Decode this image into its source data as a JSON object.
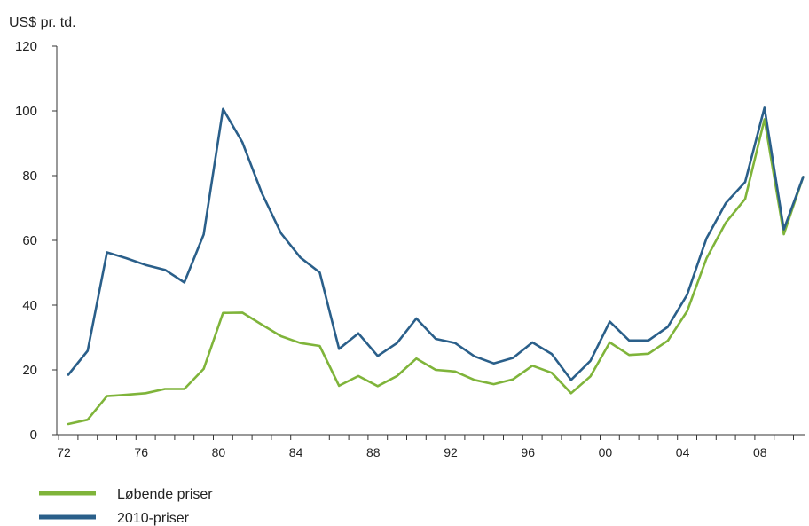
{
  "chart_data": {
    "type": "line",
    "ylabel": "US$ pr. td.",
    "ylim": [
      0,
      120
    ],
    "y_ticks": [
      "0",
      "20",
      "40",
      "60",
      "80",
      "100",
      "120"
    ],
    "x": [
      1972,
      1973,
      1974,
      1975,
      1976,
      1977,
      1978,
      1979,
      1980,
      1981,
      1982,
      1983,
      1984,
      1985,
      1986,
      1987,
      1988,
      1989,
      1990,
      1991,
      1992,
      1993,
      1994,
      1995,
      1996,
      1997,
      1998,
      1999,
      2000,
      2001,
      2002,
      2003,
      2004,
      2005,
      2006,
      2007,
      2008,
      2009,
      2010
    ],
    "x_tick_years": [
      1972,
      1976,
      1980,
      1984,
      1988,
      1992,
      1996,
      2000,
      2004,
      2008
    ],
    "x_tick_labels": [
      "72",
      "76",
      "80",
      "84",
      "88",
      "92",
      "96",
      "00",
      "04",
      "08"
    ],
    "series": [
      {
        "name": "Løbende priser",
        "color": "#7fb43a",
        "values": [
          3.3,
          4.6,
          11.9,
          12.3,
          12.8,
          14.1,
          14.1,
          20.3,
          37.6,
          37.7,
          34.0,
          30.4,
          28.3,
          27.4,
          15.1,
          18.1,
          15.0,
          18.1,
          23.5,
          20.0,
          19.5,
          16.9,
          15.6,
          17.1,
          21.3,
          19.1,
          12.8,
          18.0,
          28.5,
          24.6,
          25.0,
          29.0,
          38.1,
          54.4,
          65.5,
          72.8,
          97.4,
          61.9,
          79.6
        ]
      },
      {
        "name": "2010-priser",
        "color": "#2a5f8a",
        "values": [
          18.5,
          25.9,
          56.3,
          54.5,
          52.4,
          50.9,
          47.0,
          61.8,
          100.6,
          90.3,
          74.7,
          62.2,
          54.7,
          50.1,
          26.5,
          31.3,
          24.3,
          28.3,
          35.9,
          29.6,
          28.3,
          24.2,
          22.0,
          23.7,
          28.5,
          24.9,
          16.9,
          22.8,
          34.9,
          29.1,
          29.1,
          33.3,
          43.2,
          60.6,
          71.5,
          78.0,
          101.0,
          63.4,
          79.6
        ]
      }
    ],
    "grid": false,
    "legend_position": "bottom-left"
  }
}
